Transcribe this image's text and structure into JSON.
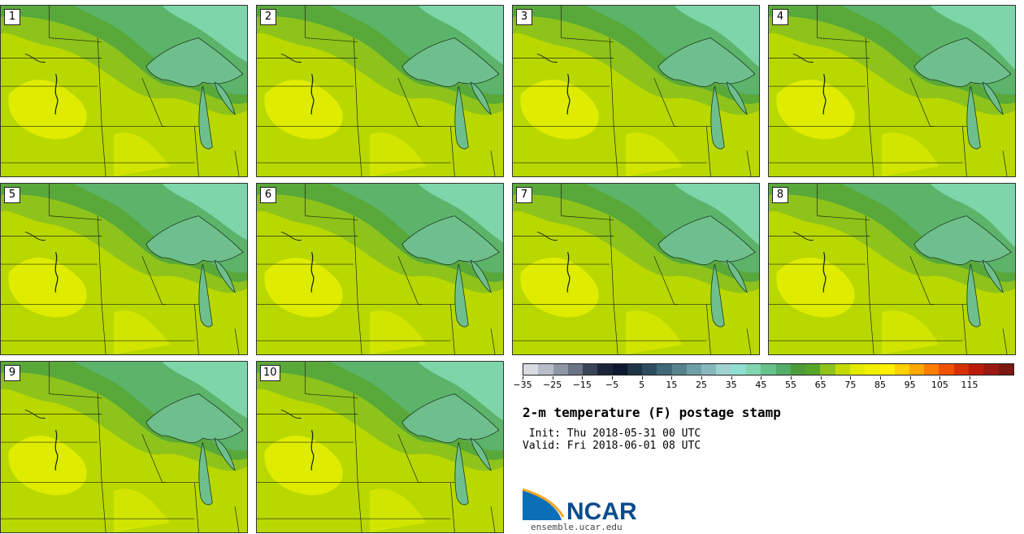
{
  "panels": [
    {
      "label": "1"
    },
    {
      "label": "2"
    },
    {
      "label": "3"
    },
    {
      "label": "4"
    },
    {
      "label": "5"
    },
    {
      "label": "6"
    },
    {
      "label": "7"
    },
    {
      "label": "8"
    },
    {
      "label": "9"
    },
    {
      "label": "10"
    }
  ],
  "colorbar": {
    "colors": [
      "#d9dde3",
      "#b8bec8",
      "#8f97a6",
      "#6a7386",
      "#3a4456",
      "#1b2438",
      "#0e1830",
      "#1f3447",
      "#2e4c5f",
      "#3f6878",
      "#57838f",
      "#6ea0a7",
      "#86b9bd",
      "#9fd3d0",
      "#90e0d2",
      "#7fd6b0",
      "#66c28a",
      "#54ad6a",
      "#4d9c3a",
      "#55a72a",
      "#8ec31b",
      "#c4dc06",
      "#e3ea02",
      "#f0f000",
      "#ffef00",
      "#ffd000",
      "#ffa800",
      "#ff7d00",
      "#f05200",
      "#d93000",
      "#bb1c0a",
      "#9b1a12",
      "#7a1812"
    ],
    "ticks": [
      "−35",
      "−25",
      "−15",
      "−5",
      "5",
      "15",
      "25",
      "35",
      "45",
      "55",
      "65",
      "75",
      "85",
      "95",
      "105",
      "115"
    ]
  },
  "title": "2-m temperature (F) postage stamp",
  "init_text": " Init: Thu 2018-05-31 00 UTC",
  "valid_text": "Valid: Fri 2018-06-01 08 UTC",
  "logo": {
    "text": "NCAR",
    "url": "ensemble.ucar.edu"
  },
  "field_colors": {
    "cool": "#7dd6a9",
    "mid_cool": "#5cb36a",
    "mid": "#58a83a",
    "warm_green": "#8ec31b",
    "base": "#b9d800",
    "warm": "#e3ee00",
    "water": "#6fbf8e"
  }
}
